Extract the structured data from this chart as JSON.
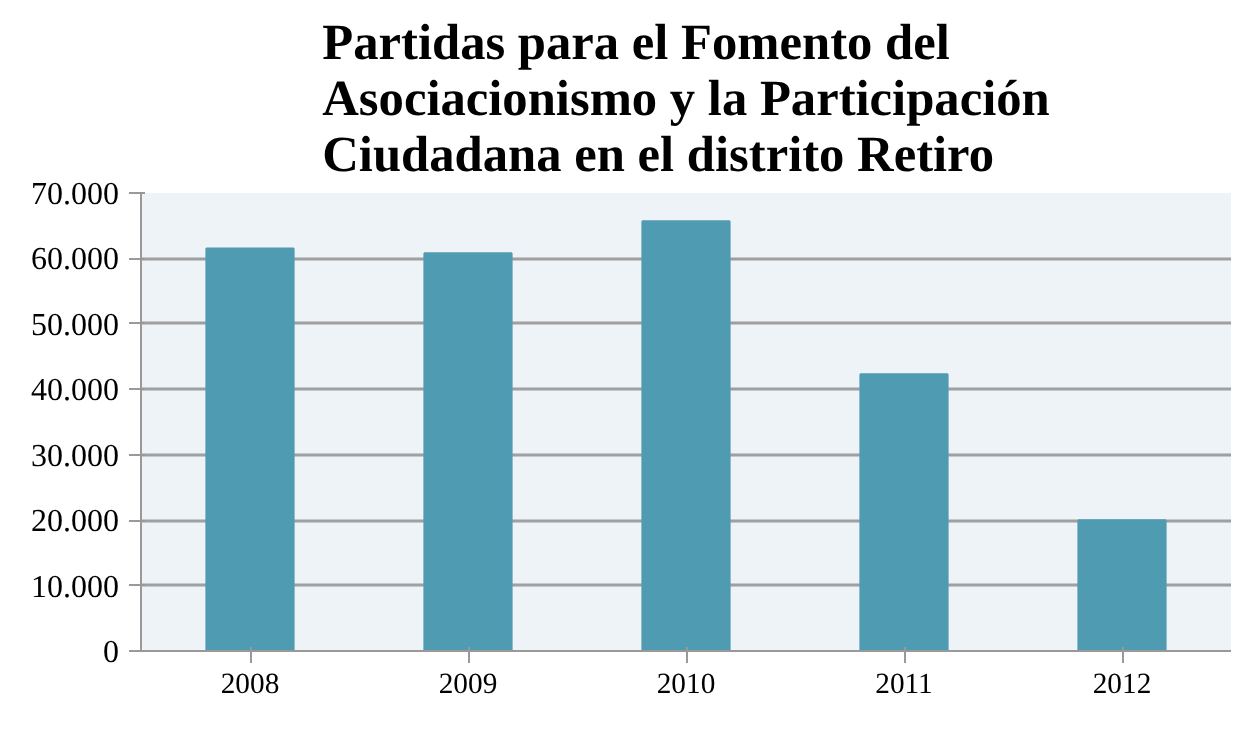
{
  "chart_data": {
    "type": "bar",
    "title": "Partidas para el Fomento del Asociacionismo y la Participación Ciudadana en el distrito Retiro",
    "categories": [
      "2008",
      "2009",
      "2010",
      "2011",
      "2012"
    ],
    "values": [
      61500,
      60800,
      65700,
      42300,
      20000
    ],
    "color": "#4f9bb2",
    "ylim": [
      0,
      70000
    ],
    "yticks": [
      {
        "value": 0,
        "label": "0"
      },
      {
        "value": 10000,
        "label": "10.000"
      },
      {
        "value": 20000,
        "label": "20.000"
      },
      {
        "value": 30000,
        "label": "30.000"
      },
      {
        "value": 40000,
        "label": "40.000"
      },
      {
        "value": 50000,
        "label": "50.000"
      },
      {
        "value": 60000,
        "label": "60.000"
      },
      {
        "value": 70000,
        "label": "70.000"
      }
    ],
    "grid": "y"
  }
}
